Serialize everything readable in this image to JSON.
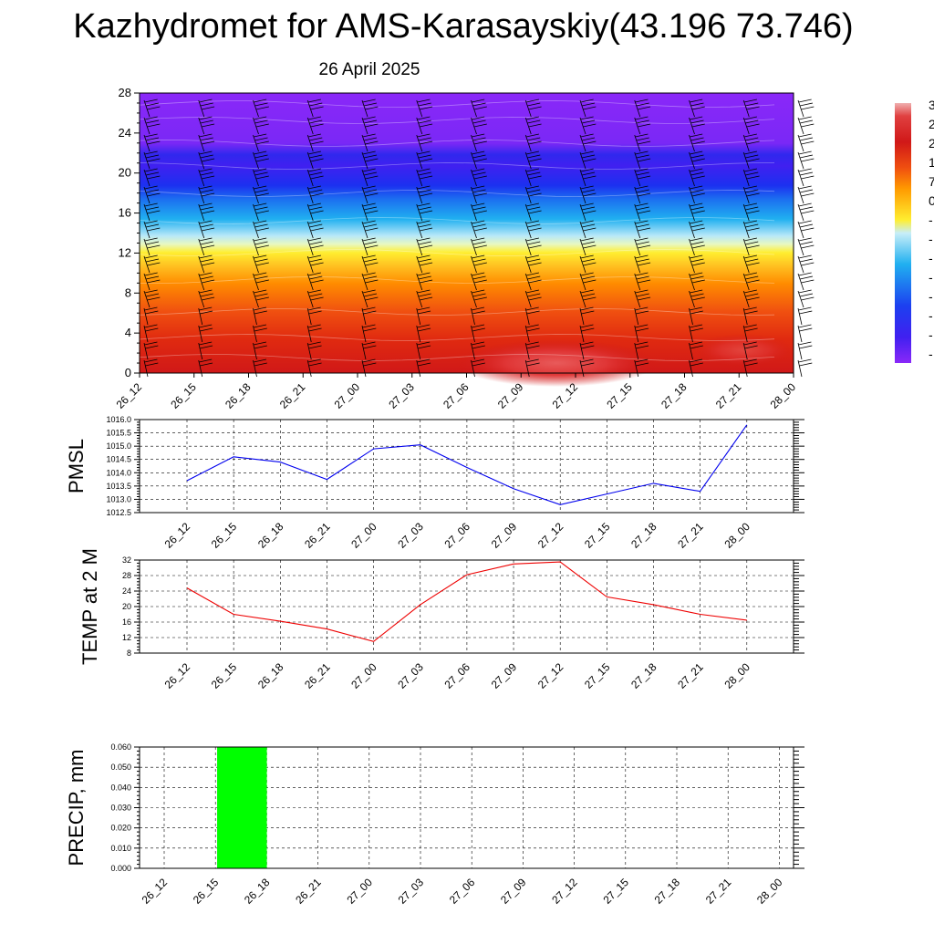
{
  "title": "Kazhydromet for AMS-Karasayskiy(43.196 73.746)",
  "subtitle": "26 April 2025",
  "colorbar": {
    "visible_labels": [
      "3",
      "2",
      "2",
      "1",
      "7",
      "0",
      "-",
      "-",
      "-",
      "-",
      "-",
      "-",
      "-",
      "-"
    ]
  },
  "chart_data": [
    {
      "type": "heatmap",
      "name": "temperature-wind-cross-section",
      "y_ticks": [
        "0",
        "4",
        "8",
        "12",
        "16",
        "20",
        "24",
        "28"
      ],
      "ylim": [
        0,
        28
      ],
      "x_ticks": [
        "26_12",
        "26_15",
        "26_18",
        "26_21",
        "27_00",
        "27_03",
        "27_06",
        "27_09",
        "27_12",
        "27_15",
        "27_18",
        "27_21",
        "28_00"
      ],
      "colors": {
        "warmest_core": "#e23a3a",
        "red": "#d01818",
        "orange": "#ff8c00",
        "yellow": "#ffee30",
        "light_blue": "#b8e8f8",
        "cyan": "#20b0f0",
        "blue": "#1c30f0",
        "violet": "#8a28f8"
      }
    },
    {
      "type": "line",
      "ylabel": "PMSL",
      "ylim": [
        1012.5,
        1016.0
      ],
      "y_ticks": [
        "1012.5",
        "1013.0",
        "1013.5",
        "1014.0",
        "1014.5",
        "1015.0",
        "1015.5",
        "1016.0"
      ],
      "x": [
        "26_12",
        "26_15",
        "26_18",
        "26_21",
        "27_00",
        "27_03",
        "27_06",
        "27_09",
        "27_12",
        "27_15",
        "27_18",
        "27_21",
        "28_00"
      ],
      "values": [
        1013.7,
        1014.6,
        1014.4,
        1013.75,
        1014.9,
        1015.05,
        1014.2,
        1013.4,
        1012.8,
        1013.2,
        1013.6,
        1013.3,
        1015.8
      ],
      "color": "#0000ee"
    },
    {
      "type": "line",
      "ylabel": "TEMP at 2 M",
      "ylim": [
        8,
        32
      ],
      "y_ticks": [
        "8",
        "12",
        "16",
        "20",
        "24",
        "28",
        "32"
      ],
      "x": [
        "26_12",
        "26_15",
        "26_18",
        "26_21",
        "27_00",
        "27_03",
        "27_06",
        "27_09",
        "27_12",
        "27_15",
        "27_18",
        "27_21",
        "28_00"
      ],
      "values": [
        24.8,
        18.0,
        16.2,
        14.2,
        11.0,
        20.5,
        28.2,
        31.0,
        31.5,
        22.5,
        20.5,
        18.0,
        16.5
      ],
      "color": "#ee0000"
    },
    {
      "type": "bar",
      "ylabel": "PRECIP, mm",
      "ylim": [
        0.0,
        0.06
      ],
      "y_ticks": [
        "0.000",
        "0.010",
        "0.020",
        "0.030",
        "0.040",
        "0.050",
        "0.060"
      ],
      "categories": [
        "26_12",
        "26_15",
        "26_18",
        "26_21",
        "27_00",
        "27_03",
        "27_06",
        "27_09",
        "27_12",
        "27_15",
        "27_18",
        "27_21",
        "28_00"
      ],
      "values": [
        0,
        0,
        0.06,
        0,
        0,
        0,
        0,
        0,
        0,
        0,
        0,
        0,
        0
      ],
      "color": "#00ff00"
    }
  ]
}
